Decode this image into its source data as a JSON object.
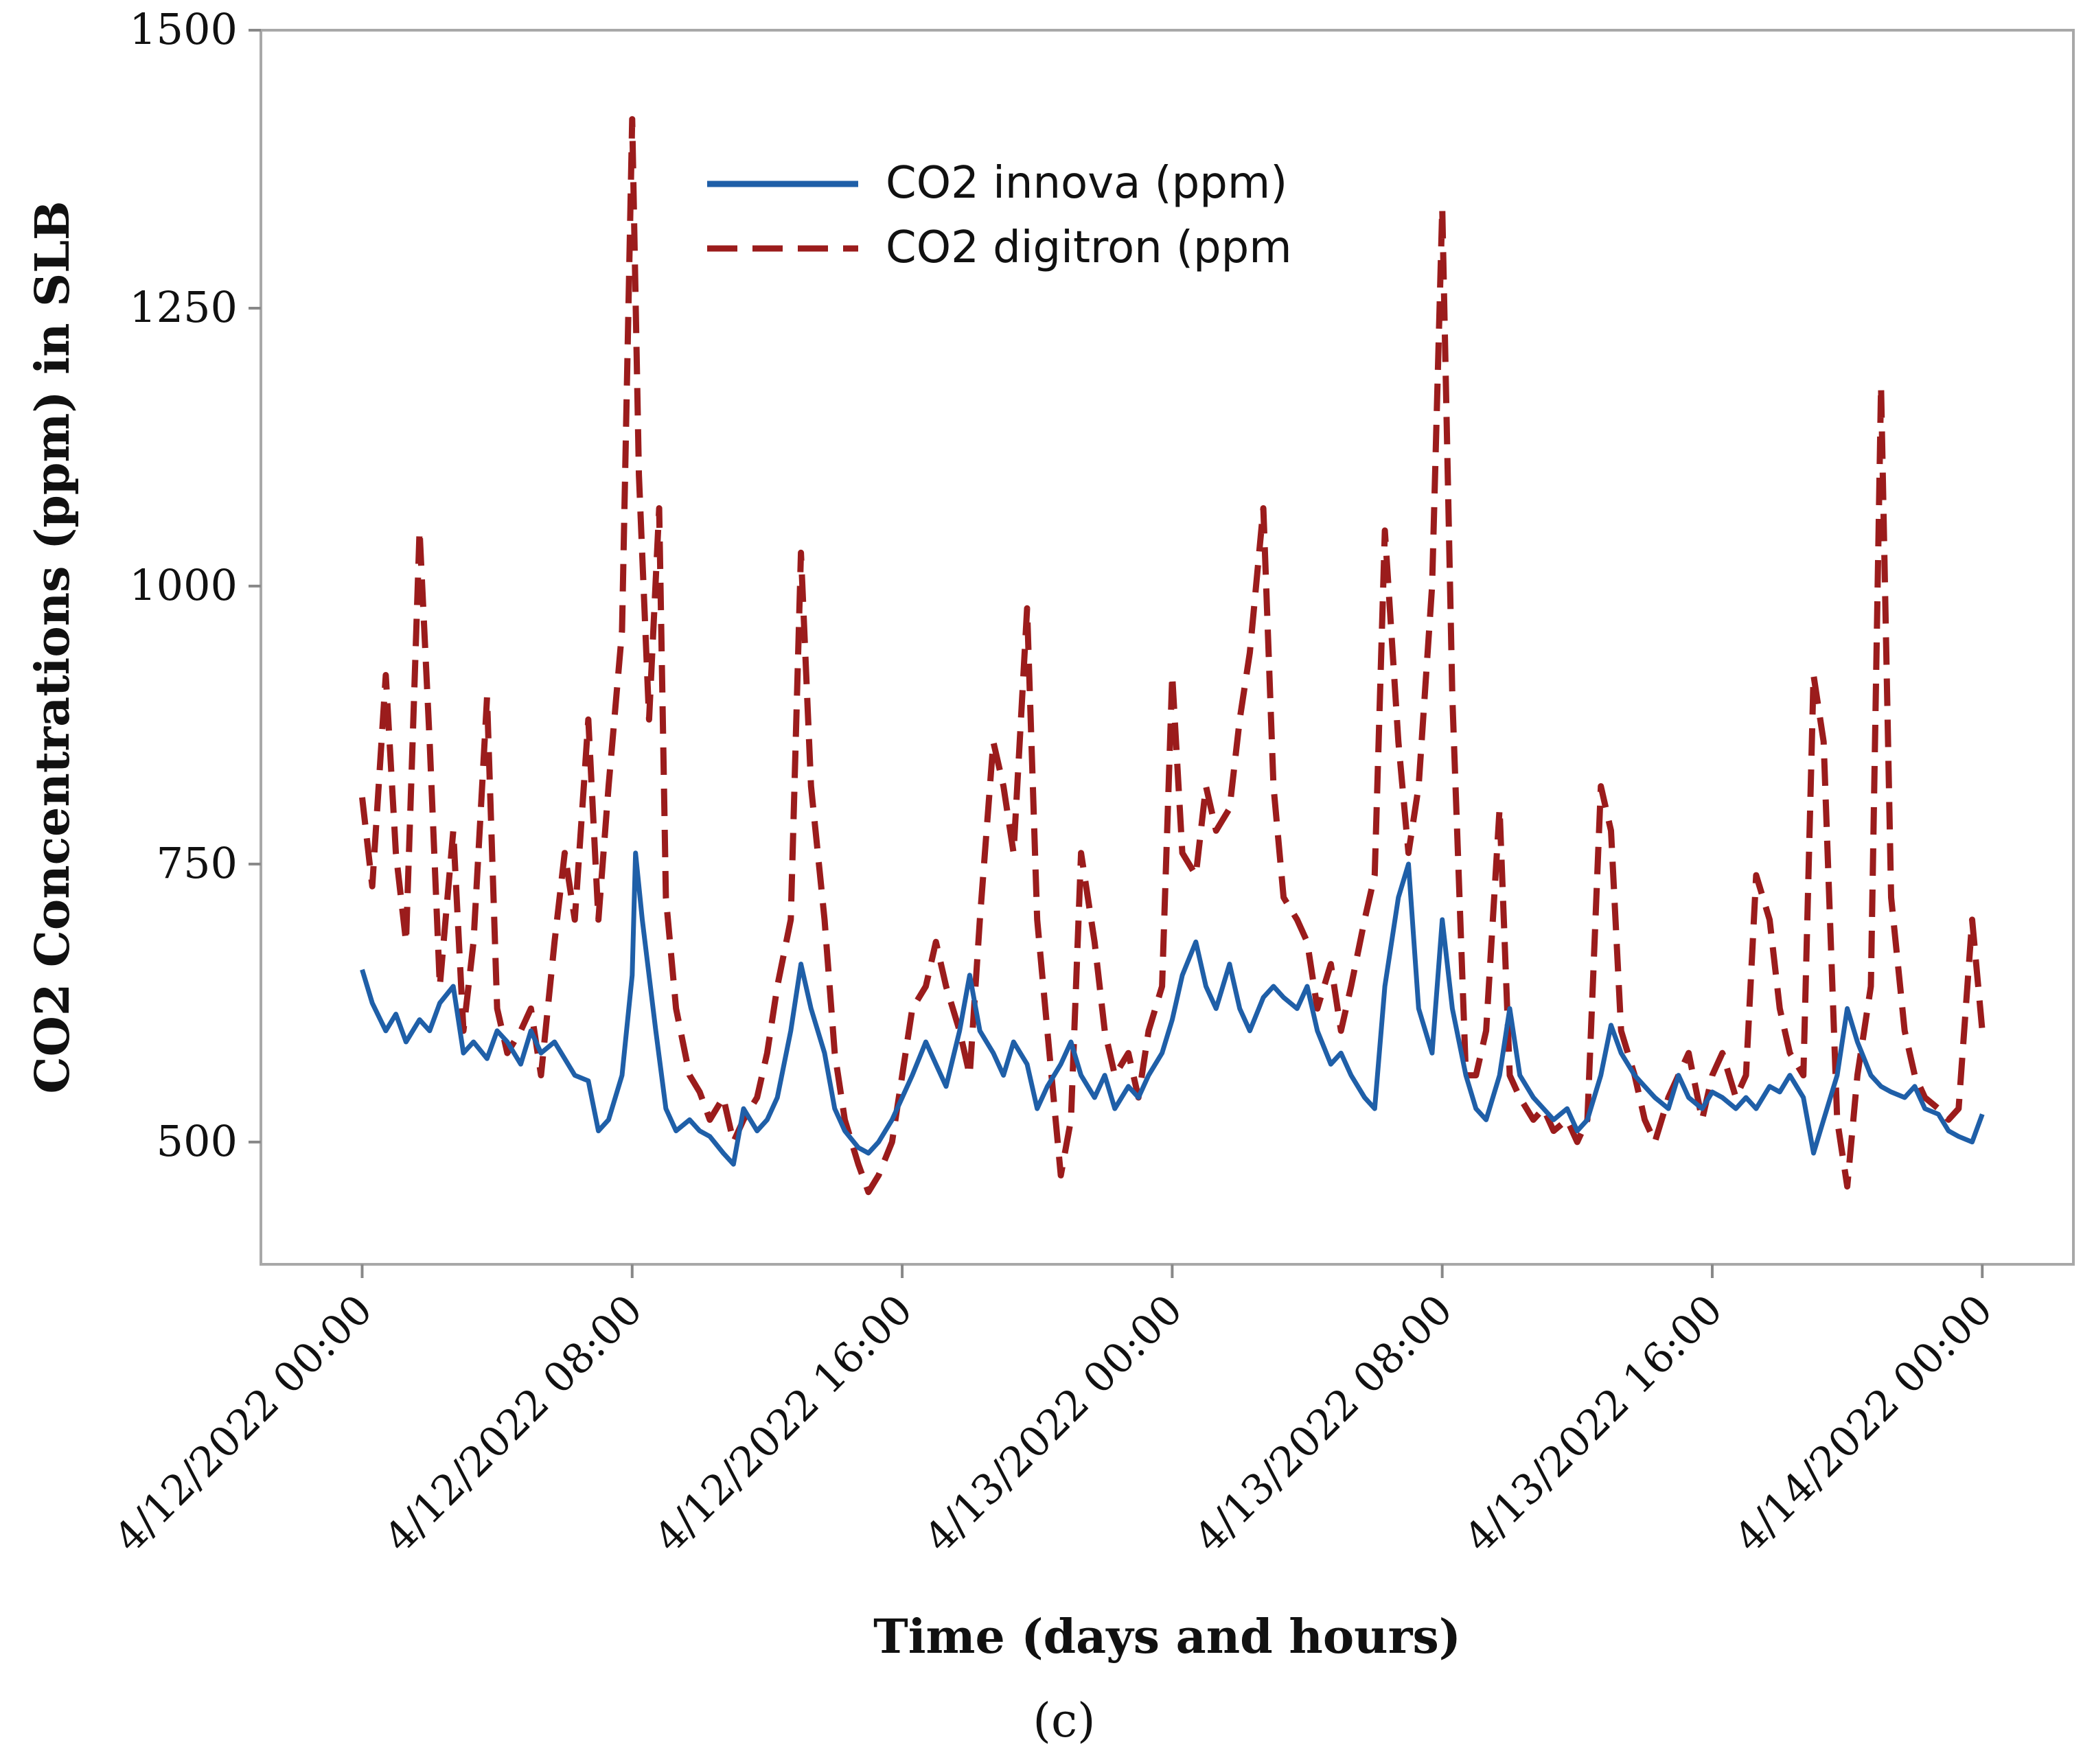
{
  "chart_data": {
    "type": "line",
    "title": "",
    "caption": "(c)",
    "xlabel": "Time (days and hours)",
    "ylabel": "CO2 Concentrations (ppm) in SLB",
    "ylim": [
      390,
      1500
    ],
    "yticks": [
      500,
      750,
      1000,
      1250,
      1500
    ],
    "ytick_labels": [
      "500",
      "750",
      "1000",
      "1250",
      "1500"
    ],
    "xlim_hours": [
      -3,
      50.7
    ],
    "xticks_hours": [
      0,
      8,
      16,
      24,
      32,
      40,
      48
    ],
    "xtick_labels": [
      "4/12/2022 00:00",
      "4/12/2022 08:00",
      "4/12/2022 16:00",
      "4/13/2022 00:00",
      "4/13/2022 08:00",
      "4/13/2022 16:00",
      "4/14/2022 00:00"
    ],
    "grid": false,
    "legend_position": "top-center",
    "series": [
      {
        "name": "CO2 innova (ppm)",
        "color": "#1f5fa8",
        "style": "solid",
        "points": [
          [
            0,
            655
          ],
          [
            0.3,
            625
          ],
          [
            0.7,
            600
          ],
          [
            1.0,
            615
          ],
          [
            1.3,
            590
          ],
          [
            1.7,
            610
          ],
          [
            2.0,
            600
          ],
          [
            2.3,
            625
          ],
          [
            2.7,
            640
          ],
          [
            3.0,
            580
          ],
          [
            3.3,
            590
          ],
          [
            3.7,
            575
          ],
          [
            4.0,
            600
          ],
          [
            4.3,
            590
          ],
          [
            4.7,
            570
          ],
          [
            5.0,
            600
          ],
          [
            5.3,
            580
          ],
          [
            5.7,
            590
          ],
          [
            6.0,
            575
          ],
          [
            6.3,
            560
          ],
          [
            6.7,
            555
          ],
          [
            7.0,
            510
          ],
          [
            7.3,
            520
          ],
          [
            7.7,
            560
          ],
          [
            8.0,
            650
          ],
          [
            8.1,
            760
          ],
          [
            8.3,
            700
          ],
          [
            8.7,
            600
          ],
          [
            9.0,
            530
          ],
          [
            9.3,
            510
          ],
          [
            9.7,
            520
          ],
          [
            10.0,
            510
          ],
          [
            10.3,
            505
          ],
          [
            10.7,
            490
          ],
          [
            11.0,
            480
          ],
          [
            11.3,
            530
          ],
          [
            11.7,
            510
          ],
          [
            12.0,
            520
          ],
          [
            12.3,
            540
          ],
          [
            12.7,
            600
          ],
          [
            13.0,
            660
          ],
          [
            13.3,
            620
          ],
          [
            13.7,
            580
          ],
          [
            14.0,
            530
          ],
          [
            14.3,
            510
          ],
          [
            14.7,
            495
          ],
          [
            15.0,
            490
          ],
          [
            15.3,
            500
          ],
          [
            15.7,
            520
          ],
          [
            16.0,
            540
          ],
          [
            16.3,
            560
          ],
          [
            16.7,
            590
          ],
          [
            17.0,
            570
          ],
          [
            17.3,
            550
          ],
          [
            17.7,
            600
          ],
          [
            18.0,
            650
          ],
          [
            18.3,
            600
          ],
          [
            18.7,
            580
          ],
          [
            19.0,
            560
          ],
          [
            19.3,
            590
          ],
          [
            19.7,
            570
          ],
          [
            20.0,
            530
          ],
          [
            20.3,
            550
          ],
          [
            20.7,
            570
          ],
          [
            21.0,
            590
          ],
          [
            21.3,
            560
          ],
          [
            21.7,
            540
          ],
          [
            22.0,
            560
          ],
          [
            22.3,
            530
          ],
          [
            22.7,
            550
          ],
          [
            23.0,
            540
          ],
          [
            23.3,
            560
          ],
          [
            23.7,
            580
          ],
          [
            24.0,
            610
          ],
          [
            24.3,
            650
          ],
          [
            24.7,
            680
          ],
          [
            25.0,
            640
          ],
          [
            25.3,
            620
          ],
          [
            25.7,
            660
          ],
          [
            26.0,
            620
          ],
          [
            26.3,
            600
          ],
          [
            26.7,
            630
          ],
          [
            27.0,
            640
          ],
          [
            27.3,
            630
          ],
          [
            27.7,
            620
          ],
          [
            28.0,
            640
          ],
          [
            28.3,
            600
          ],
          [
            28.7,
            570
          ],
          [
            29.0,
            580
          ],
          [
            29.3,
            560
          ],
          [
            29.7,
            540
          ],
          [
            30.0,
            530
          ],
          [
            30.3,
            640
          ],
          [
            30.7,
            720
          ],
          [
            31.0,
            750
          ],
          [
            31.3,
            620
          ],
          [
            31.7,
            580
          ],
          [
            32.0,
            700
          ],
          [
            32.3,
            620
          ],
          [
            32.7,
            560
          ],
          [
            33.0,
            530
          ],
          [
            33.3,
            520
          ],
          [
            33.7,
            560
          ],
          [
            34.0,
            620
          ],
          [
            34.3,
            560
          ],
          [
            34.7,
            540
          ],
          [
            35.0,
            530
          ],
          [
            35.3,
            520
          ],
          [
            35.7,
            530
          ],
          [
            36.0,
            510
          ],
          [
            36.3,
            520
          ],
          [
            36.7,
            560
          ],
          [
            37.0,
            605
          ],
          [
            37.3,
            580
          ],
          [
            37.7,
            560
          ],
          [
            38.0,
            550
          ],
          [
            38.3,
            540
          ],
          [
            38.7,
            530
          ],
          [
            39.0,
            560
          ],
          [
            39.3,
            540
          ],
          [
            39.7,
            530
          ],
          [
            40.0,
            545
          ],
          [
            40.3,
            540
          ],
          [
            40.7,
            530
          ],
          [
            41.0,
            540
          ],
          [
            41.3,
            530
          ],
          [
            41.7,
            550
          ],
          [
            42.0,
            545
          ],
          [
            42.3,
            560
          ],
          [
            42.7,
            540
          ],
          [
            43.0,
            490
          ],
          [
            43.3,
            520
          ],
          [
            43.7,
            560
          ],
          [
            44.0,
            620
          ],
          [
            44.3,
            590
          ],
          [
            44.7,
            560
          ],
          [
            45.0,
            550
          ],
          [
            45.3,
            545
          ],
          [
            45.7,
            540
          ],
          [
            46.0,
            550
          ],
          [
            46.3,
            530
          ],
          [
            46.7,
            525
          ],
          [
            47.0,
            510
          ],
          [
            47.3,
            505
          ],
          [
            47.7,
            500
          ],
          [
            48.0,
            525
          ]
        ]
      },
      {
        "name": "CO2 digitron (ppm",
        "color": "#9b1c1c",
        "style": "dashed",
        "points": [
          [
            0,
            810
          ],
          [
            0.3,
            730
          ],
          [
            0.7,
            920
          ],
          [
            1.0,
            760
          ],
          [
            1.3,
            680
          ],
          [
            1.7,
            1050
          ],
          [
            2.0,
            860
          ],
          [
            2.3,
            640
          ],
          [
            2.7,
            780
          ],
          [
            3.0,
            600
          ],
          [
            3.3,
            680
          ],
          [
            3.7,
            900
          ],
          [
            4.0,
            620
          ],
          [
            4.3,
            580
          ],
          [
            4.7,
            600
          ],
          [
            5.0,
            620
          ],
          [
            5.3,
            560
          ],
          [
            5.7,
            680
          ],
          [
            6.0,
            760
          ],
          [
            6.3,
            700
          ],
          [
            6.7,
            880
          ],
          [
            7.0,
            700
          ],
          [
            7.3,
            820
          ],
          [
            7.7,
            960
          ],
          [
            8.0,
            1420
          ],
          [
            8.2,
            1100
          ],
          [
            8.5,
            880
          ],
          [
            8.8,
            1070
          ],
          [
            9.0,
            720
          ],
          [
            9.3,
            620
          ],
          [
            9.7,
            560
          ],
          [
            10.0,
            545
          ],
          [
            10.3,
            520
          ],
          [
            10.7,
            540
          ],
          [
            11.0,
            500
          ],
          [
            11.3,
            520
          ],
          [
            11.7,
            540
          ],
          [
            12.0,
            580
          ],
          [
            12.3,
            640
          ],
          [
            12.7,
            700
          ],
          [
            13.0,
            1030
          ],
          [
            13.3,
            820
          ],
          [
            13.7,
            700
          ],
          [
            14.0,
            580
          ],
          [
            14.3,
            520
          ],
          [
            14.7,
            480
          ],
          [
            15.0,
            455
          ],
          [
            15.3,
            470
          ],
          [
            15.7,
            500
          ],
          [
            16.0,
            560
          ],
          [
            16.3,
            620
          ],
          [
            16.7,
            640
          ],
          [
            17.0,
            680
          ],
          [
            17.3,
            640
          ],
          [
            17.7,
            600
          ],
          [
            18.0,
            560
          ],
          [
            18.3,
            700
          ],
          [
            18.7,
            860
          ],
          [
            19.0,
            820
          ],
          [
            19.3,
            760
          ],
          [
            19.7,
            980
          ],
          [
            20.0,
            700
          ],
          [
            20.3,
            600
          ],
          [
            20.7,
            470
          ],
          [
            21.0,
            520
          ],
          [
            21.3,
            760
          ],
          [
            21.7,
            680
          ],
          [
            22.0,
            600
          ],
          [
            22.3,
            560
          ],
          [
            22.7,
            580
          ],
          [
            23.0,
            540
          ],
          [
            23.3,
            600
          ],
          [
            23.7,
            640
          ],
          [
            24.0,
            920
          ],
          [
            24.3,
            760
          ],
          [
            24.7,
            740
          ],
          [
            25.0,
            820
          ],
          [
            25.3,
            780
          ],
          [
            25.7,
            800
          ],
          [
            26.0,
            880
          ],
          [
            26.3,
            940
          ],
          [
            26.7,
            1070
          ],
          [
            27.0,
            820
          ],
          [
            27.3,
            720
          ],
          [
            27.7,
            700
          ],
          [
            28.0,
            680
          ],
          [
            28.3,
            620
          ],
          [
            28.7,
            660
          ],
          [
            29.0,
            600
          ],
          [
            29.3,
            640
          ],
          [
            29.7,
            700
          ],
          [
            30.0,
            740
          ],
          [
            30.3,
            1050
          ],
          [
            30.7,
            860
          ],
          [
            31.0,
            760
          ],
          [
            31.3,
            820
          ],
          [
            31.7,
            1000
          ],
          [
            32.0,
            1340
          ],
          [
            32.3,
            900
          ],
          [
            32.7,
            560
          ],
          [
            33.0,
            560
          ],
          [
            33.3,
            600
          ],
          [
            33.7,
            800
          ],
          [
            34.0,
            560
          ],
          [
            34.3,
            540
          ],
          [
            34.7,
            520
          ],
          [
            35.0,
            530
          ],
          [
            35.3,
            510
          ],
          [
            35.7,
            520
          ],
          [
            36.0,
            500
          ],
          [
            36.3,
            520
          ],
          [
            36.7,
            820
          ],
          [
            37.0,
            780
          ],
          [
            37.3,
            600
          ],
          [
            37.7,
            560
          ],
          [
            38.0,
            520
          ],
          [
            38.3,
            500
          ],
          [
            38.7,
            540
          ],
          [
            39.0,
            560
          ],
          [
            39.3,
            580
          ],
          [
            39.7,
            520
          ],
          [
            40.0,
            560
          ],
          [
            40.3,
            580
          ],
          [
            40.7,
            540
          ],
          [
            41.0,
            560
          ],
          [
            41.3,
            740
          ],
          [
            41.7,
            700
          ],
          [
            42.0,
            620
          ],
          [
            42.3,
            580
          ],
          [
            42.7,
            560
          ],
          [
            43.0,
            920
          ],
          [
            43.3,
            860
          ],
          [
            43.7,
            520
          ],
          [
            44.0,
            460
          ],
          [
            44.3,
            560
          ],
          [
            44.7,
            640
          ],
          [
            45.0,
            1180
          ],
          [
            45.3,
            720
          ],
          [
            45.7,
            600
          ],
          [
            46.0,
            560
          ],
          [
            46.3,
            540
          ],
          [
            46.7,
            530
          ],
          [
            47.0,
            520
          ],
          [
            47.3,
            530
          ],
          [
            47.7,
            700
          ],
          [
            48.0,
            600
          ]
        ]
      }
    ]
  }
}
